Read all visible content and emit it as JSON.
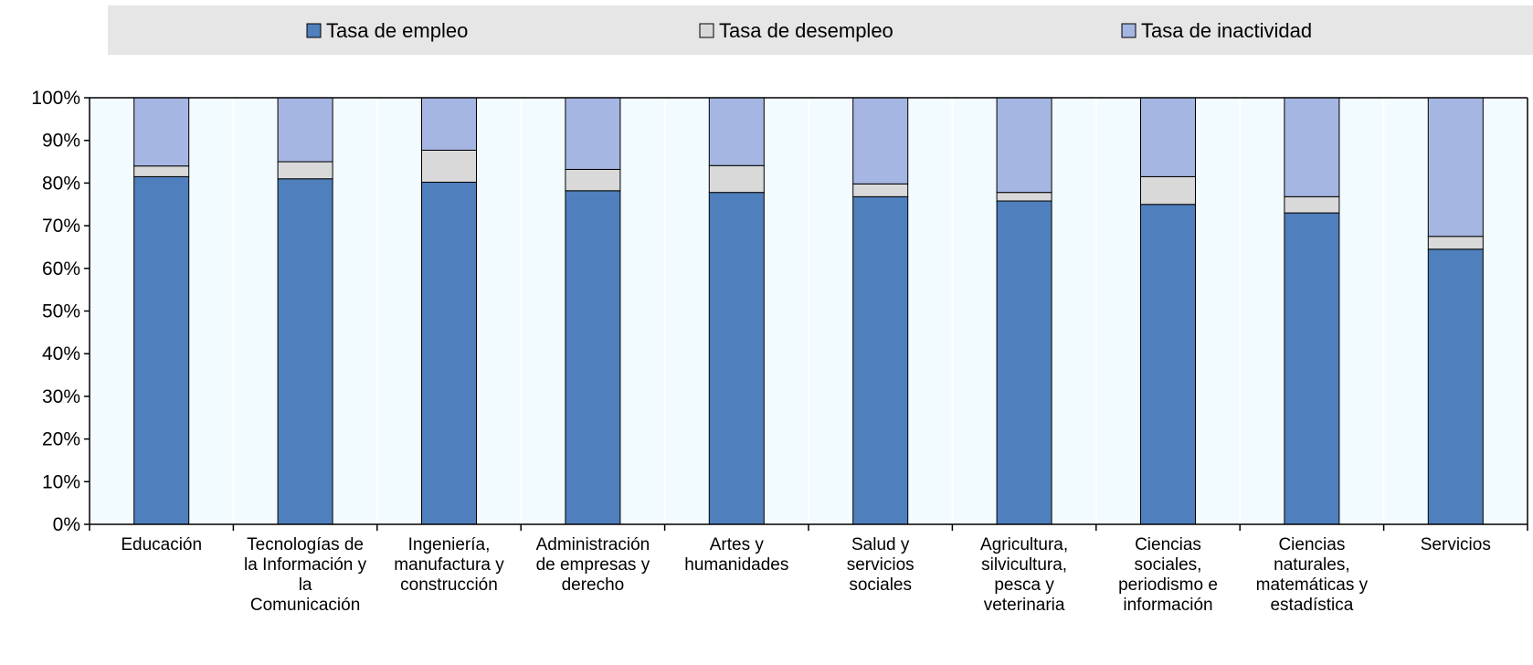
{
  "colors": {
    "employment": "#4f7fbc",
    "unemployment": "#d9d9d9",
    "inactivity": "#a6b6e2",
    "plot_bg": "#f2fbff",
    "legend_bg": "#e6e6e6",
    "grid": "#ffffff",
    "axis": "#000000"
  },
  "chart_data": {
    "type": "bar",
    "stacked": true,
    "title": "",
    "xlabel": "",
    "ylabel": "",
    "ylim": [
      0,
      100
    ],
    "y_ticks": [
      "0%",
      "10%",
      "20%",
      "30%",
      "40%",
      "50%",
      "60%",
      "70%",
      "80%",
      "90%",
      "100%"
    ],
    "legend_position": "top",
    "categories": [
      "Educación",
      "Tecnologías de la Información y la Comunicación",
      "Ingeniería, manufactura y construcción",
      "Administración de empresas y derecho",
      "Artes y humanidades",
      "Salud y servicios sociales",
      "Agricultura, silvicultura, pesca y veterinaria",
      "Ciencias sociales, periodismo e información",
      "Ciencias naturales, matemáticas y estadística",
      "Servicios"
    ],
    "category_label_lines": [
      [
        "Educación"
      ],
      [
        "Tecnologías de",
        "la Información y",
        "la",
        "Comunicación"
      ],
      [
        "Ingeniería,",
        "manufactura y",
        "construcción"
      ],
      [
        "Administración",
        "de empresas y",
        "derecho"
      ],
      [
        "Artes y",
        "humanidades"
      ],
      [
        "Salud y",
        "servicios",
        "sociales"
      ],
      [
        "Agricultura,",
        "silvicultura,",
        "pesca y",
        "veterinaria"
      ],
      [
        "Ciencias",
        "sociales,",
        "periodismo e",
        "información"
      ],
      [
        "Ciencias",
        "naturales,",
        "matemáticas y",
        "estadística"
      ],
      [
        "Servicios"
      ]
    ],
    "series": [
      {
        "name": "Tasa de empleo",
        "values": [
          81.5,
          81,
          80.2,
          78.2,
          77.8,
          76.8,
          75.8,
          75,
          73,
          64.5
        ]
      },
      {
        "name": "Tasa de desempleo",
        "values": [
          2.5,
          4,
          7.5,
          5,
          6.3,
          3,
          2,
          6.5,
          3.8,
          3
        ]
      },
      {
        "name": "Tasa de inactividad",
        "values": [
          16,
          15,
          12.3,
          16.8,
          15.9,
          20.2,
          22.2,
          18.5,
          23.2,
          32.5
        ]
      }
    ]
  }
}
